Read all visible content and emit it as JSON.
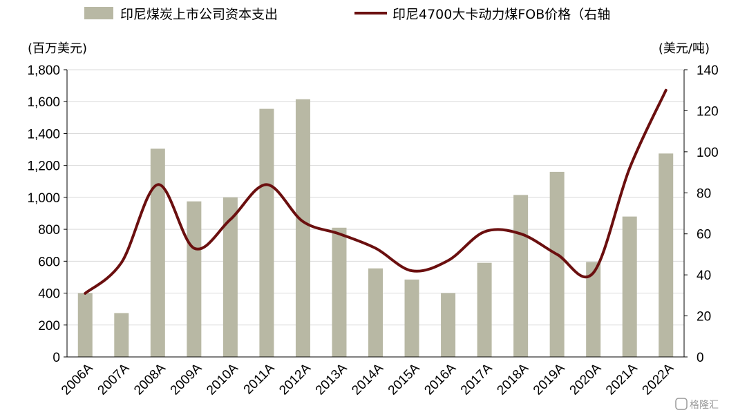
{
  "chart_data": {
    "type": "bar",
    "categories": [
      "2006A",
      "2007A",
      "2008A",
      "2009A",
      "2010A",
      "2011A",
      "2012A",
      "2013A",
      "2014A",
      "2015A",
      "2016A",
      "2017A",
      "2018A",
      "2019A",
      "2020A",
      "2021A",
      "2022A"
    ],
    "series": [
      {
        "name": "印尼煤炭上市公司资本支出",
        "type": "bar",
        "axis": "left",
        "color": "#b8b8a4",
        "values": [
          400,
          275,
          1305,
          975,
          1000,
          1555,
          1615,
          810,
          555,
          485,
          400,
          590,
          1015,
          1160,
          595,
          880,
          1275
        ]
      },
      {
        "name": "印尼4700大卡动力煤FOB价格（右轴",
        "type": "line",
        "axis": "right",
        "color": "#6b0f0f",
        "values": [
          31,
          46,
          84,
          53,
          67,
          84,
          66,
          60,
          53,
          42,
          47,
          61,
          60,
          50,
          41,
          92,
          130
        ]
      }
    ],
    "y_left": {
      "unit": "(百万美元)",
      "min": 0,
      "max": 1800,
      "ticks": [
        "0",
        "200",
        "400",
        "600",
        "800",
        "1,000",
        "1,200",
        "1,400",
        "1,600",
        "1,800"
      ]
    },
    "y_right": {
      "unit": "(美元/吨)",
      "min": 0,
      "max": 140,
      "ticks": [
        "0",
        "20",
        "40",
        "60",
        "80",
        "100",
        "120",
        "140"
      ]
    },
    "grid": true,
    "legend_position": "top"
  },
  "watermark": "格隆汇",
  "colors": {
    "bar": "#b8b8a4",
    "line": "#6b0f0f",
    "grid": "#d9d9d9"
  }
}
